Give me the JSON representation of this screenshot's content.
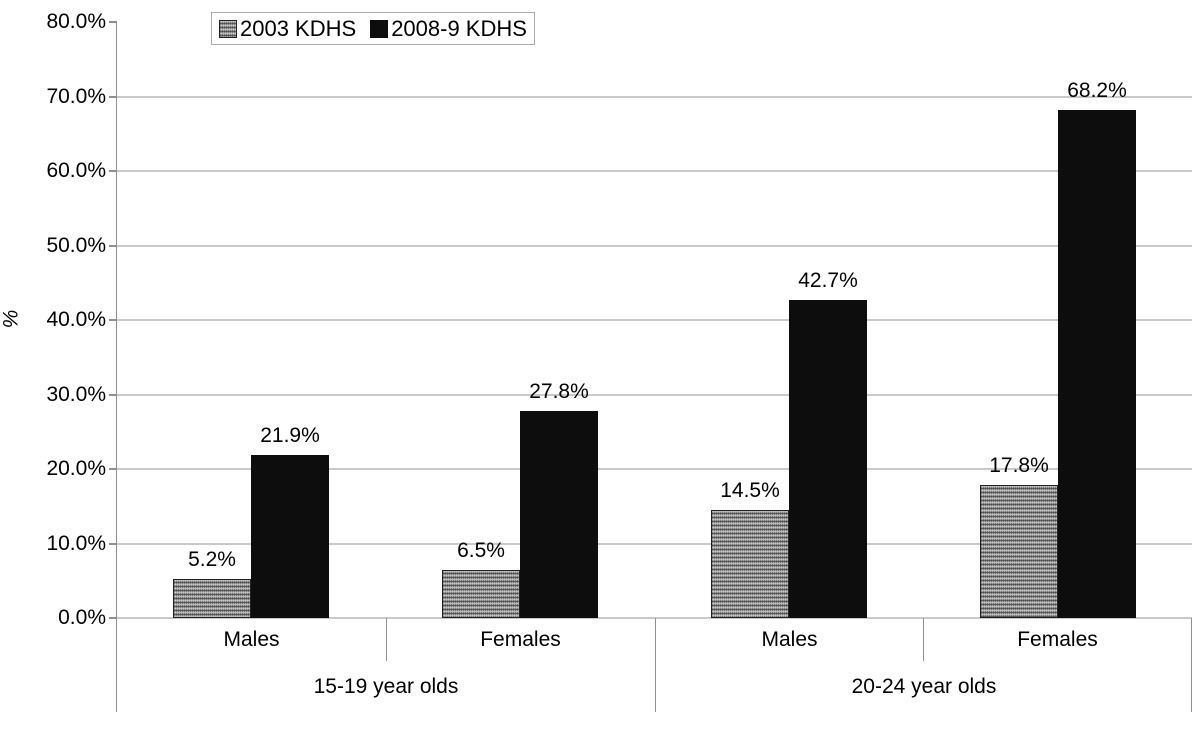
{
  "chart_data": {
    "type": "bar",
    "title": "",
    "ylabel": "%",
    "xlabel": "",
    "ylim": [
      0,
      80
    ],
    "ytick_step": 10,
    "grid": "horizontal",
    "legend_position": "top-left",
    "y_tick_labels": [
      "0.0%",
      "10.0%",
      "20.0%",
      "30.0%",
      "40.0%",
      "50.0%",
      "60.0%",
      "70.0%",
      "80.0%"
    ],
    "categories": [
      "Males",
      "Females",
      "Males",
      "Females"
    ],
    "groups": [
      {
        "label": "15-19 year olds",
        "span": [
          "Males",
          "Females"
        ]
      },
      {
        "label": "20-24 year olds",
        "span": [
          "Males",
          "Females"
        ]
      }
    ],
    "series": [
      {
        "name": "2003 KDHS",
        "swatch": "gray-pattern",
        "values": [
          5.2,
          6.5,
          14.5,
          17.8
        ],
        "labels": [
          "5.2%",
          "6.5%",
          "14.5%",
          "17.8%"
        ]
      },
      {
        "name": "2008-9 KDHS",
        "swatch": "solid-black",
        "values": [
          21.9,
          27.8,
          42.7,
          68.2
        ],
        "labels": [
          "21.9%",
          "27.8%",
          "42.7%",
          "68.2%"
        ]
      }
    ]
  },
  "legend": {
    "items": [
      {
        "label": "2003 KDHS",
        "swatch": "gray-pattern"
      },
      {
        "label": "2008-9 KDHS",
        "swatch": "solid-black"
      }
    ]
  },
  "colors": {
    "bar_black": "#0d0d0d",
    "bar_gray": "#9a9a9a",
    "gridline": "#c9c9c9",
    "axis": "#8f8f8f",
    "text": "#000000",
    "legend_border": "#ababab"
  }
}
